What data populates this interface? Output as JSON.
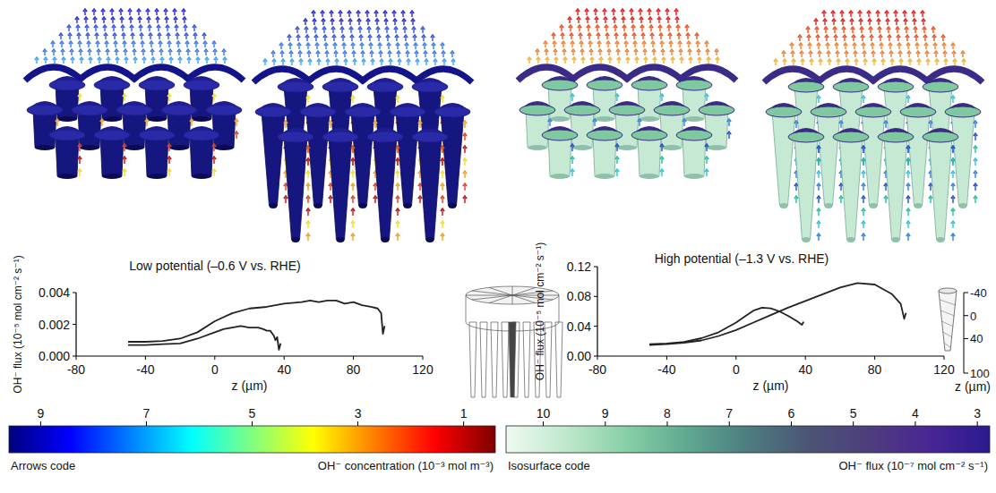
{
  "chart_data": [
    {
      "type": "line",
      "title": "Low potential (–0.6 V vs. RHE)",
      "x_label": "z (µm)",
      "y_label": "OH⁻ flux (10⁻⁵ mol cm⁻² s⁻¹)",
      "xlim": [
        -80,
        120
      ],
      "xticks": [
        -80,
        -40,
        0,
        40,
        80,
        120
      ],
      "ylim": [
        0,
        0.004
      ],
      "yticks": [
        {
          "value": 0,
          "label": "0.000"
        },
        0.002,
        0.004
      ],
      "grid": false,
      "series": [
        {
          "color": "#222222",
          "x": [
            -50,
            -40,
            -30,
            -20,
            -10,
            0,
            10,
            20,
            30,
            40,
            50,
            55,
            60,
            65,
            70,
            75,
            80,
            85,
            90,
            94,
            96,
            97,
            98
          ],
          "values": [
            0.0009,
            0.0009,
            0.00095,
            0.0011,
            0.0015,
            0.0022,
            0.0027,
            0.003,
            0.0031,
            0.0033,
            0.0034,
            0.0035,
            0.0034,
            0.0035,
            0.0035,
            0.0033,
            0.0034,
            0.0032,
            0.0031,
            0.003,
            0.0027,
            0.0014,
            0.0019
          ]
        },
        {
          "color": "#222222",
          "x": [
            -50,
            -40,
            -30,
            -20,
            -10,
            0,
            5,
            10,
            15,
            20,
            25,
            28,
            30,
            32,
            34,
            35,
            36,
            37,
            38
          ],
          "values": [
            0.0007,
            0.0007,
            0.00075,
            0.0008,
            0.0011,
            0.0015,
            0.0017,
            0.0018,
            0.0019,
            0.0018,
            0.0018,
            0.0017,
            0.0016,
            0.0016,
            0.0013,
            0.001,
            0.0012,
            0.0004,
            0.0008
          ]
        }
      ],
      "colorbar": {
        "title": "Arrows code",
        "label": "OH⁻ concentration (10⁻³ mol m⁻³)",
        "range": [
          9.6,
          0.4
        ],
        "ticks": [
          9,
          7,
          5,
          3,
          1
        ],
        "colors": [
          "#00007f",
          "#0000ff",
          "#0080ff",
          "#00ffff",
          "#80ff80",
          "#ffff00",
          "#ff8000",
          "#ff0000",
          "#7f0000"
        ]
      }
    },
    {
      "type": "line",
      "title": "High potential (–1.3 V vs. RHE)",
      "x_label": "z (µm)",
      "y_label": "OH⁻ flux (10⁻⁵ mol cm⁻² s⁻¹)",
      "xlim": [
        -80,
        120
      ],
      "xticks": [
        -80,
        -40,
        0,
        40,
        80,
        120
      ],
      "ylim": [
        0,
        0.12
      ],
      "yticks": [
        {
          "value": 0,
          "label": "0.00"
        },
        0.04,
        0.08,
        0.12
      ],
      "grid": false,
      "series": [
        {
          "color": "#222222",
          "x": [
            -50,
            -40,
            -30,
            -20,
            -10,
            0,
            10,
            20,
            30,
            40,
            50,
            60,
            70,
            80,
            90,
            95,
            97,
            98
          ],
          "values": [
            0.015,
            0.016,
            0.018,
            0.021,
            0.027,
            0.035,
            0.045,
            0.055,
            0.065,
            0.074,
            0.083,
            0.092,
            0.098,
            0.096,
            0.083,
            0.07,
            0.05,
            0.058
          ]
        },
        {
          "color": "#222222",
          "x": [
            -50,
            -40,
            -30,
            -20,
            -10,
            0,
            5,
            10,
            15,
            20,
            25,
            30,
            35,
            38,
            39
          ],
          "values": [
            0.016,
            0.017,
            0.019,
            0.024,
            0.032,
            0.045,
            0.053,
            0.061,
            0.065,
            0.064,
            0.06,
            0.054,
            0.047,
            0.042,
            0.046
          ]
        }
      ],
      "inset_axis": {
        "label": "z (µm)",
        "ylim": [
          -40,
          100
        ],
        "yticks": [
          -40,
          0,
          40,
          100
        ]
      },
      "colorbar": {
        "title": "Isosurface code",
        "label": "OH⁻ flux (10⁻⁷ mol cm⁻² s⁻¹)",
        "range": [
          10.6,
          2.8
        ],
        "ticks": [
          10,
          9,
          8,
          7,
          6,
          5,
          4,
          3
        ],
        "colors": [
          "#eefaf2",
          "#bfe8cb",
          "#86cfa6",
          "#5fa890",
          "#4d7d80",
          "#4b5575",
          "#4e3d7e",
          "#4a2694",
          "#2b1a8f"
        ]
      }
    }
  ]
}
